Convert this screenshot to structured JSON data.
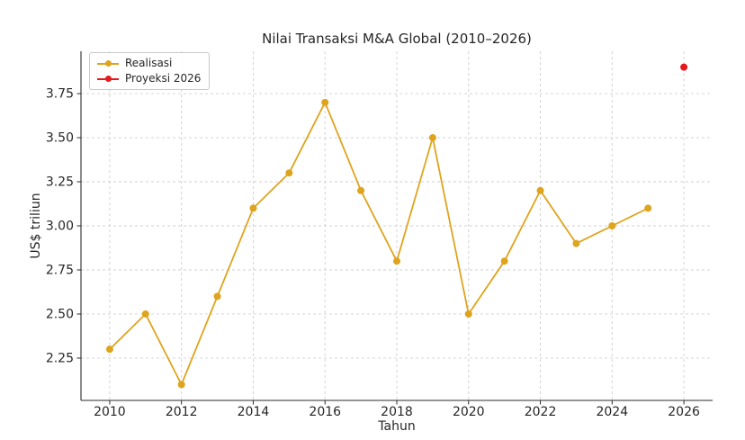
{
  "chart_data": {
    "type": "line",
    "title": "Nilai Transaksi M&A Global (2010–2026)",
    "xlabel": "Tahun",
    "ylabel": "US$ triliun",
    "xlim": [
      2009.2,
      2026.8
    ],
    "ylim": [
      2.01,
      3.99
    ],
    "grid": true,
    "legend_position": "upper left",
    "x_ticks": [
      2010,
      2012,
      2014,
      2016,
      2018,
      2020,
      2022,
      2024,
      2026
    ],
    "x_tick_labels": [
      "2010",
      "2012",
      "2014",
      "2016",
      "2018",
      "2020",
      "2022",
      "2024",
      "2026"
    ],
    "y_ticks": [
      2.25,
      2.5,
      2.75,
      3.0,
      3.25,
      3.5,
      3.75
    ],
    "y_tick_labels": [
      "2.25",
      "2.50",
      "2.75",
      "3.00",
      "3.25",
      "3.50",
      "3.75"
    ],
    "series": [
      {
        "name": "Realisasi",
        "color": "#dfa41e",
        "marker": "circle",
        "line": true,
        "x": [
          2010,
          2011,
          2012,
          2013,
          2014,
          2015,
          2016,
          2017,
          2018,
          2019,
          2020,
          2021,
          2022,
          2023,
          2024,
          2025
        ],
        "values": [
          2.3,
          2.5,
          2.1,
          2.6,
          3.1,
          3.3,
          3.7,
          3.2,
          2.8,
          3.5,
          2.5,
          2.8,
          3.2,
          2.9,
          3.0,
          3.1
        ]
      },
      {
        "name": "Proyeksi 2026",
        "color": "#e41a1c",
        "marker": "circle",
        "line": false,
        "x": [
          2026
        ],
        "values": [
          3.9
        ]
      }
    ]
  }
}
